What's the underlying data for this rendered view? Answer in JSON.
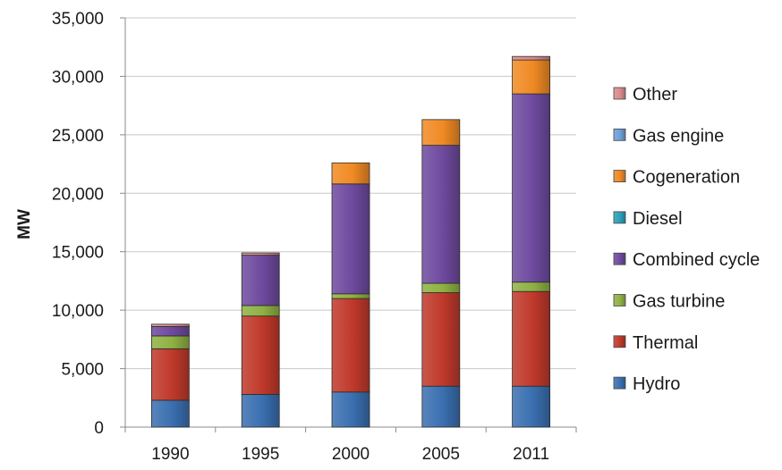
{
  "chart_data": {
    "type": "bar",
    "stacked": true,
    "title": "",
    "xlabel": "",
    "ylabel": "MW",
    "ylim": [
      0,
      35000
    ],
    "yticks": [
      0,
      5000,
      10000,
      15000,
      20000,
      25000,
      30000,
      35000
    ],
    "ytick_labels": [
      "0",
      "5,000",
      "10,000",
      "15,000",
      "20,000",
      "25,000",
      "30,000",
      "35,000"
    ],
    "categories": [
      "1990",
      "1995",
      "2000",
      "2005",
      "2011"
    ],
    "legend_position": "right",
    "series": [
      {
        "name": "Hydro",
        "color": "#3a6fb0",
        "values": [
          2300,
          2800,
          3000,
          3500,
          3500
        ]
      },
      {
        "name": "Thermal",
        "color": "#c0392b",
        "values": [
          4400,
          6700,
          8000,
          8000,
          8100
        ]
      },
      {
        "name": "Gas turbine",
        "color": "#8fb143",
        "values": [
          1100,
          900,
          400,
          800,
          800
        ]
      },
      {
        "name": "Combined cycle",
        "color": "#6e4a9e",
        "values": [
          800,
          4300,
          9400,
          11800,
          16100
        ]
      },
      {
        "name": "Diesel",
        "color": "#2aa0b8",
        "values": [
          0,
          0,
          0,
          0,
          0
        ]
      },
      {
        "name": "Cogeneration",
        "color": "#f08a24",
        "values": [
          0,
          0,
          1800,
          2200,
          2900
        ]
      },
      {
        "name": "Gas engine",
        "color": "#6f9fd8",
        "values": [
          0,
          0,
          0,
          0,
          0
        ]
      },
      {
        "name": "Other",
        "color": "#d98b8b",
        "values": [
          200,
          200,
          0,
          0,
          300
        ]
      }
    ],
    "legend_order": [
      "Other",
      "Gas engine",
      "Cogeneration",
      "Diesel",
      "Combined cycle",
      "Gas turbine",
      "Thermal",
      "Hydro"
    ]
  }
}
